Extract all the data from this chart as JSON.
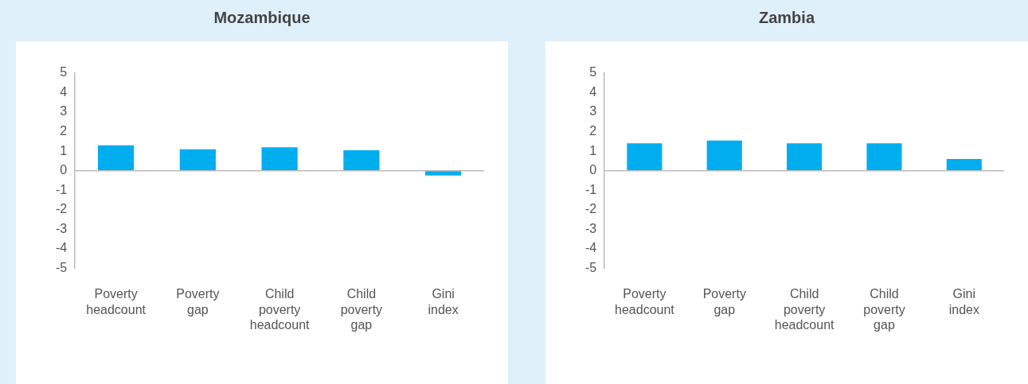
{
  "chart_data": [
    {
      "type": "bar",
      "title": "Mozambique",
      "categories": [
        "Poverty headcount",
        "Poverty gap",
        "Child poverty headcount",
        "Child poverty gap",
        "Gini index"
      ],
      "values": [
        1.3,
        1.1,
        1.2,
        1.05,
        -0.25
      ],
      "color": "#00aeef",
      "ylim": [
        -5,
        5
      ],
      "yticks": [
        -5,
        -4,
        -3,
        -2,
        -1,
        0,
        1,
        2,
        3,
        4,
        5
      ]
    },
    {
      "type": "bar",
      "title": "Zambia",
      "categories": [
        "Poverty headcount",
        "Poverty gap",
        "Child poverty headcount",
        "Child poverty gap",
        "Gini index"
      ],
      "values": [
        1.4,
        1.55,
        1.4,
        1.4,
        0.6
      ],
      "color": "#00aeef",
      "ylim": [
        -5,
        5
      ],
      "yticks": [
        -5,
        -4,
        -3,
        -2,
        -1,
        0,
        1,
        2,
        3,
        4,
        5
      ]
    }
  ]
}
